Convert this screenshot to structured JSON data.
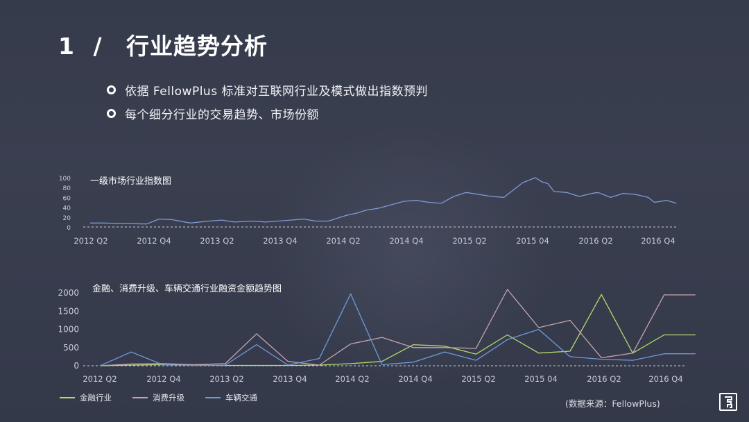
{
  "title": {
    "number": "1",
    "separator": "/",
    "text": "行业趋势分析"
  },
  "bullets": [
    "依据 FellowPlus 标准对互联网行业及模式做出指数预判",
    "每个细分行业的交易趋势、市场份额"
  ],
  "chart_data": [
    {
      "type": "line",
      "title": "一级市场行业指数图",
      "categories": [
        "2012 Q2",
        "2012 Q4",
        "2013 Q2",
        "2013 Q4",
        "2014 Q2",
        "2014 Q4",
        "2015 Q2",
        "2015 04",
        "2016 Q2",
        "2016 Q4"
      ],
      "y_ticks": [
        0,
        20,
        40,
        60,
        80,
        100
      ],
      "ylim": [
        0,
        100
      ],
      "grid": false,
      "series": [
        {
          "color": "#7f9bd6",
          "x": [
            0,
            0.2,
            0.5,
            0.9,
            1.1,
            1.3,
            1.6,
            1.9,
            2.1,
            2.3,
            2.6,
            2.8,
            3.0,
            3.2,
            3.4,
            3.6,
            3.8,
            4.0,
            4.1,
            4.25,
            4.4,
            4.6,
            4.8,
            5.0,
            5.2,
            5.4,
            5.6,
            5.8,
            6.0,
            6.2,
            6.4,
            6.6,
            6.9,
            7.0,
            7.1,
            7.2,
            7.3,
            7.4,
            7.6,
            7.8,
            8.0,
            8.1,
            8.3,
            8.5,
            8.7,
            8.9,
            9.0,
            9.2,
            9.35
          ],
          "values": [
            8,
            8,
            7,
            6,
            16,
            15,
            8,
            12,
            14,
            10,
            12,
            10,
            12,
            14,
            16,
            12,
            12,
            20,
            24,
            28,
            34,
            38,
            45,
            52,
            54,
            50,
            48,
            62,
            70,
            66,
            62,
            60,
            90,
            95,
            100,
            92,
            88,
            72,
            70,
            62,
            68,
            70,
            60,
            68,
            66,
            60,
            50,
            54,
            48
          ]
        }
      ]
    },
    {
      "type": "line",
      "title": "金融、消费升级、车辆交通行业融资金额趋势图",
      "categories": [
        "2012 Q2",
        "2012 Q4",
        "2013 Q2",
        "2013 Q4",
        "2014 Q2",
        "2014 Q4",
        "2015 Q2",
        "2015 04",
        "2016 Q2",
        "2016 Q4"
      ],
      "y_ticks": [
        0,
        500,
        1000,
        1500,
        2000
      ],
      "ylim": [
        0,
        2100
      ],
      "grid": false,
      "series": [
        {
          "name": "金融行业",
          "color": "#b6da6c",
          "x": [
            0,
            0.5,
            1,
            1.5,
            2,
            2.5,
            3,
            3.5,
            4,
            4.5,
            5,
            5.5,
            6,
            6.5,
            7,
            7.5,
            8,
            8.5,
            9,
            9.5
          ],
          "values": [
            0,
            20,
            30,
            20,
            10,
            10,
            10,
            20,
            60,
            120,
            580,
            540,
            320,
            850,
            350,
            400,
            1960,
            350,
            850,
            850
          ]
        },
        {
          "name": "消费升级",
          "color": "#c7a3ae",
          "x": [
            0,
            0.5,
            1,
            1.5,
            2,
            2.5,
            3,
            3.5,
            4,
            4.5,
            5,
            5.5,
            6,
            6.5,
            7,
            7.5,
            8,
            8.5,
            9,
            9.5
          ],
          "values": [
            0,
            50,
            60,
            30,
            60,
            880,
            120,
            20,
            600,
            780,
            500,
            500,
            480,
            2100,
            1050,
            1250,
            220,
            350,
            1950,
            1950
          ]
        },
        {
          "name": "车辆交通",
          "color": "#6f9ad9",
          "x": [
            0,
            0.5,
            1,
            1.5,
            2,
            2.5,
            3,
            3.5,
            4,
            4.5,
            5,
            5.5,
            6,
            6.5,
            7,
            7.5,
            8,
            8.5,
            9,
            9.5
          ],
          "values": [
            0,
            380,
            30,
            10,
            20,
            580,
            20,
            200,
            1980,
            30,
            100,
            380,
            150,
            720,
            1000,
            250,
            180,
            150,
            330,
            330
          ]
        }
      ]
    }
  ],
  "source": "(数据来源：FellowPlus)"
}
